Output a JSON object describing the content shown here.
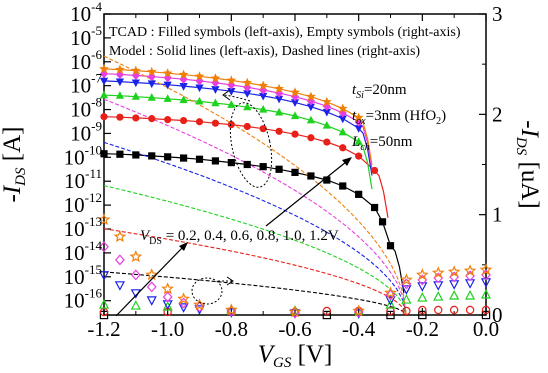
{
  "chart_data": {
    "type": "scatter",
    "xlabel": {
      "main": "V",
      "sub": "GS",
      "unit": " [V]"
    },
    "ylabel_left": {
      "main": "-I",
      "sub": "DS",
      "unit": " [A]"
    },
    "ylabel_right": {
      "main": "-I",
      "sub": "DS",
      "unit": " [uA]"
    },
    "x_ticks": [
      "-1.2",
      "-1.0",
      "-0.8",
      "-0.6",
      "-0.4",
      "-0.2",
      "0.0"
    ],
    "xlim": [
      -1.2,
      0.0
    ],
    "y_left": {
      "scale": "log",
      "range_exp": [
        -16.6,
        -4
      ],
      "tick_exps": [
        -16,
        -15,
        -14,
        -13,
        -12,
        -11,
        -10,
        -9,
        -8,
        -7,
        -6,
        -5,
        -4
      ]
    },
    "y_right": {
      "range": [
        0,
        3
      ],
      "ticks": [
        "0",
        "1",
        "2",
        "3"
      ]
    },
    "legend_lines": [
      "TCAD : Filled symbols (left-axis), Empty symbols (right-axis)",
      "Model :  Solid lines (left-axis), Dashed lines (right-axis)"
    ],
    "params": [
      {
        "main": "t",
        "sub": "Si",
        "rest": "=20nm"
      },
      {
        "main": "t",
        "sub": "ox",
        "rest": "=3nm (HfO",
        "sub2": "2",
        "rest2": ")"
      },
      {
        "main": "L",
        "sub": "ch",
        "rest": "=50nm"
      }
    ],
    "vds_annotation": {
      "main": "V",
      "sub": "DS",
      "rest": " = 0.2, 0.4, 0.6, 0.8, 1.0, 1.2V"
    },
    "series": [
      {
        "vds": 0.2,
        "color": "#000000",
        "marker": "square",
        "log_current": [
          [
            -1.2,
            -9.85
          ],
          [
            -1.15,
            -9.87
          ],
          [
            -1.1,
            -9.9
          ],
          [
            -1.05,
            -9.94
          ],
          [
            -1.0,
            -9.98
          ],
          [
            -0.95,
            -10.03
          ],
          [
            -0.9,
            -10.08
          ],
          [
            -0.85,
            -10.15
          ],
          [
            -0.8,
            -10.22
          ],
          [
            -0.75,
            -10.3
          ],
          [
            -0.7,
            -10.39
          ],
          [
            -0.65,
            -10.5
          ],
          [
            -0.6,
            -10.63
          ],
          [
            -0.55,
            -10.78
          ],
          [
            -0.5,
            -10.95
          ],
          [
            -0.45,
            -11.2
          ],
          [
            -0.4,
            -11.55
          ],
          [
            -0.35,
            -12.1
          ],
          [
            -0.325,
            -12.7
          ],
          [
            -0.3,
            -13.7
          ]
        ],
        "lin_current": [
          [
            -1.2,
            0.0
          ],
          [
            -0.5,
            0.0
          ],
          [
            -0.3,
            0.0
          ],
          [
            -0.2,
            0.0
          ],
          [
            0.0,
            0.0
          ]
        ]
      },
      {
        "vds": 0.4,
        "color": "#e8201a",
        "marker": "circle",
        "log_current": [
          [
            -1.2,
            -8.3
          ],
          [
            -1.15,
            -8.32
          ],
          [
            -1.1,
            -8.35
          ],
          [
            -1.05,
            -8.38
          ],
          [
            -1.0,
            -8.42
          ],
          [
            -0.95,
            -8.46
          ],
          [
            -0.9,
            -8.51
          ],
          [
            -0.85,
            -8.57
          ],
          [
            -0.8,
            -8.63
          ],
          [
            -0.75,
            -8.71
          ],
          [
            -0.7,
            -8.8
          ],
          [
            -0.65,
            -8.91
          ],
          [
            -0.6,
            -9.03
          ],
          [
            -0.55,
            -9.18
          ],
          [
            -0.5,
            -9.36
          ],
          [
            -0.45,
            -9.6
          ],
          [
            -0.4,
            -9.95
          ],
          [
            -0.35,
            -10.55
          ]
        ],
        "lin_current": [
          [
            -1.2,
            0.03
          ],
          [
            -1.0,
            0.03
          ],
          [
            -0.8,
            0.03
          ],
          [
            -0.6,
            0.03
          ],
          [
            -0.5,
            0.04
          ],
          [
            -0.4,
            0.04
          ],
          [
            -0.3,
            0.04
          ],
          [
            -0.25,
            0.04
          ],
          [
            -0.2,
            0.05
          ],
          [
            -0.15,
            0.05
          ],
          [
            -0.1,
            0.05
          ],
          [
            -0.05,
            0.05
          ],
          [
            0.0,
            0.05
          ]
        ]
      },
      {
        "vds": 0.6,
        "color": "#1fd21f",
        "marker": "triangle-up",
        "log_current": [
          [
            -1.2,
            -7.4
          ],
          [
            -1.15,
            -7.42
          ],
          [
            -1.1,
            -7.46
          ],
          [
            -1.05,
            -7.5
          ],
          [
            -1.0,
            -7.55
          ],
          [
            -0.95,
            -7.6
          ],
          [
            -0.9,
            -7.66
          ],
          [
            -0.85,
            -7.73
          ],
          [
            -0.8,
            -7.8
          ],
          [
            -0.75,
            -7.9
          ],
          [
            -0.7,
            -8.0
          ],
          [
            -0.65,
            -8.12
          ],
          [
            -0.6,
            -8.27
          ],
          [
            -0.55,
            -8.45
          ],
          [
            -0.5,
            -8.67
          ],
          [
            -0.45,
            -8.95
          ],
          [
            -0.4,
            -9.35
          ]
        ],
        "lin_current": [
          [
            -1.2,
            0.1
          ],
          [
            -1.1,
            0.09
          ],
          [
            -1.0,
            0.08
          ],
          [
            -0.8,
            0.05
          ],
          [
            -0.6,
            0.04
          ],
          [
            -0.4,
            0.04
          ],
          [
            -0.3,
            0.1
          ],
          [
            -0.25,
            0.15
          ],
          [
            -0.2,
            0.17
          ],
          [
            -0.15,
            0.18
          ],
          [
            -0.1,
            0.19
          ],
          [
            -0.05,
            0.19
          ],
          [
            0.0,
            0.2
          ]
        ]
      },
      {
        "vds": 0.8,
        "color": "#1a23e8",
        "marker": "triangle-down",
        "log_current": [
          [
            -1.2,
            -6.8
          ],
          [
            -1.15,
            -6.83
          ],
          [
            -1.1,
            -6.87
          ],
          [
            -1.05,
            -6.91
          ],
          [
            -1.0,
            -6.96
          ],
          [
            -0.95,
            -7.02
          ],
          [
            -0.9,
            -7.08
          ],
          [
            -0.85,
            -7.15
          ],
          [
            -0.8,
            -7.23
          ],
          [
            -0.75,
            -7.32
          ],
          [
            -0.7,
            -7.43
          ],
          [
            -0.65,
            -7.55
          ],
          [
            -0.6,
            -7.7
          ],
          [
            -0.55,
            -7.88
          ],
          [
            -0.5,
            -8.1
          ],
          [
            -0.45,
            -8.38
          ],
          [
            -0.4,
            -8.78
          ]
        ],
        "lin_current": [
          [
            -1.2,
            0.4
          ],
          [
            -1.15,
            0.3
          ],
          [
            -1.1,
            0.22
          ],
          [
            -1.05,
            0.15
          ],
          [
            -1.0,
            0.11
          ],
          [
            -0.95,
            0.08
          ],
          [
            -0.9,
            0.06
          ],
          [
            -0.8,
            0.03
          ],
          [
            -0.6,
            0.02
          ],
          [
            -0.4,
            0.02
          ],
          [
            -0.3,
            0.15
          ],
          [
            -0.25,
            0.26
          ],
          [
            -0.2,
            0.29
          ],
          [
            -0.15,
            0.3
          ],
          [
            -0.1,
            0.31
          ],
          [
            -0.05,
            0.32
          ],
          [
            0.0,
            0.33
          ]
        ]
      },
      {
        "vds": 1.0,
        "color": "#e83fe0",
        "marker": "diamond",
        "log_current": [
          [
            -1.2,
            -6.5
          ],
          [
            -1.15,
            -6.53
          ],
          [
            -1.1,
            -6.57
          ],
          [
            -1.05,
            -6.62
          ],
          [
            -1.0,
            -6.67
          ],
          [
            -0.95,
            -6.73
          ],
          [
            -0.9,
            -6.8
          ],
          [
            -0.85,
            -6.88
          ],
          [
            -0.8,
            -6.97
          ],
          [
            -0.75,
            -7.07
          ],
          [
            -0.7,
            -7.18
          ],
          [
            -0.65,
            -7.31
          ],
          [
            -0.6,
            -7.46
          ],
          [
            -0.55,
            -7.64
          ],
          [
            -0.5,
            -7.86
          ],
          [
            -0.45,
            -8.14
          ],
          [
            -0.4,
            -8.52
          ]
        ],
        "lin_current": [
          [
            -1.2,
            0.68
          ],
          [
            -1.15,
            0.55
          ],
          [
            -1.1,
            0.4
          ],
          [
            -1.05,
            0.28
          ],
          [
            -1.0,
            0.18
          ],
          [
            -0.95,
            0.12
          ],
          [
            -0.9,
            0.08
          ],
          [
            -0.8,
            0.04
          ],
          [
            -0.6,
            0.02
          ],
          [
            -0.4,
            0.03
          ],
          [
            -0.3,
            0.2
          ],
          [
            -0.25,
            0.31
          ],
          [
            -0.2,
            0.35
          ],
          [
            -0.15,
            0.37
          ],
          [
            -0.1,
            0.38
          ],
          [
            -0.05,
            0.39
          ],
          [
            0.0,
            0.4
          ]
        ]
      },
      {
        "vds": 1.2,
        "color": "#f07f0a",
        "marker": "star",
        "log_current": [
          [
            -1.2,
            -6.3
          ],
          [
            -1.15,
            -6.33
          ],
          [
            -1.1,
            -6.37
          ],
          [
            -1.05,
            -6.42
          ],
          [
            -1.0,
            -6.48
          ],
          [
            -0.95,
            -6.54
          ],
          [
            -0.9,
            -6.61
          ],
          [
            -0.85,
            -6.69
          ],
          [
            -0.8,
            -6.78
          ],
          [
            -0.75,
            -6.88
          ],
          [
            -0.7,
            -7.0
          ],
          [
            -0.65,
            -7.13
          ],
          [
            -0.6,
            -7.28
          ],
          [
            -0.55,
            -7.46
          ],
          [
            -0.5,
            -7.68
          ],
          [
            -0.45,
            -7.96
          ],
          [
            -0.4,
            -8.34
          ]
        ],
        "lin_current": [
          [
            -1.2,
            0.95
          ],
          [
            -1.15,
            0.78
          ],
          [
            -1.1,
            0.58
          ],
          [
            -1.05,
            0.4
          ],
          [
            -1.0,
            0.26
          ],
          [
            -0.95,
            0.16
          ],
          [
            -0.9,
            0.1
          ],
          [
            -0.8,
            0.05
          ],
          [
            -0.6,
            0.03
          ],
          [
            -0.4,
            0.04
          ],
          [
            -0.3,
            0.22
          ],
          [
            -0.25,
            0.35
          ],
          [
            -0.2,
            0.4
          ],
          [
            -0.15,
            0.42
          ],
          [
            -0.1,
            0.43
          ],
          [
            -0.05,
            0.44
          ],
          [
            0.0,
            0.45
          ]
        ]
      }
    ]
  }
}
